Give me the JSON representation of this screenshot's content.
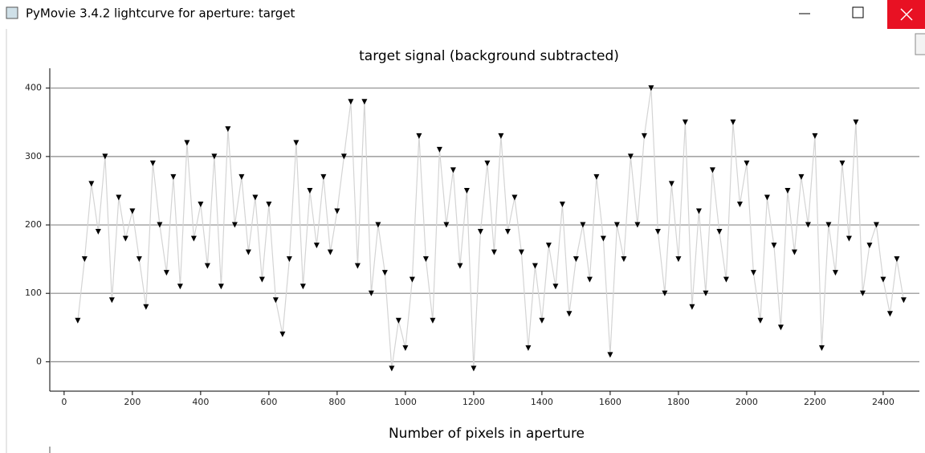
{
  "window_title": "PyMovie 3.4.2 lightcurve for aperture: target",
  "chart_data": {
    "type": "scatter",
    "title": "target signal (background subtracted)",
    "xlabel": "Number of pixels in aperture",
    "x": [
      40,
      60,
      80,
      100,
      120,
      140,
      160,
      180,
      200,
      220,
      240,
      260,
      280,
      300,
      320,
      340,
      360,
      380,
      400,
      420,
      440,
      460,
      480,
      500,
      520,
      540,
      560,
      580,
      600,
      620,
      640,
      660,
      680,
      700,
      720,
      740,
      760,
      780,
      800,
      820,
      840,
      860,
      880,
      900,
      920,
      940,
      960,
      980,
      1000,
      1020,
      1040,
      1060,
      1080,
      1100,
      1120,
      1140,
      1160,
      1180,
      1200,
      1220,
      1240,
      1260,
      1280,
      1300,
      1320,
      1340,
      1360,
      1380,
      1400,
      1420,
      1440,
      1460,
      1480,
      1500,
      1520,
      1540,
      1560,
      1580,
      1600,
      1620,
      1640,
      1660,
      1680,
      1700,
      1720,
      1740,
      1760,
      1780,
      1800,
      1820,
      1840,
      1860,
      1880,
      1900,
      1920,
      1940,
      1960,
      1980,
      2000,
      2020,
      2040,
      2060,
      2080,
      2100,
      2120,
      2140,
      2160,
      2180,
      2200,
      2220,
      2240,
      2260,
      2280,
      2300,
      2320,
      2340,
      2360,
      2380,
      2400,
      2420,
      2440,
      2460
    ],
    "values": [
      60,
      150,
      260,
      190,
      300,
      90,
      240,
      180,
      220,
      150,
      80,
      290,
      200,
      130,
      270,
      110,
      320,
      180,
      230,
      140,
      300,
      110,
      340,
      200,
      270,
      160,
      240,
      120,
      230,
      90,
      40,
      150,
      320,
      110,
      250,
      170,
      270,
      160,
      220,
      300,
      380,
      140,
      380,
      100,
      200,
      130,
      -10,
      60,
      20,
      120,
      330,
      150,
      60,
      310,
      200,
      280,
      140,
      250,
      -10,
      190,
      290,
      160,
      330,
      190,
      240,
      160,
      20,
      140,
      60,
      170,
      110,
      230,
      70,
      150,
      200,
      120,
      270,
      180,
      10,
      200,
      150,
      300,
      200,
      330,
      400,
      190,
      100,
      260,
      150,
      350,
      80,
      220,
      100,
      280,
      190,
      120,
      350,
      230,
      290,
      130,
      60,
      240,
      170,
      50,
      250,
      160,
      270,
      200,
      330,
      20,
      200,
      130,
      290,
      180,
      350,
      100,
      170,
      200,
      120,
      70,
      150,
      90
    ],
    "color": "#000000",
    "line_color": "#d4d4d4",
    "xlim": [
      -42,
      2506
    ],
    "ylim": [
      -43,
      429
    ],
    "xticks": [
      0,
      200,
      400,
      600,
      800,
      1000,
      1200,
      1400,
      1600,
      1800,
      2000,
      2200,
      2400
    ],
    "yticks": [
      0,
      100,
      200,
      300,
      400
    ],
    "grid": true
  }
}
